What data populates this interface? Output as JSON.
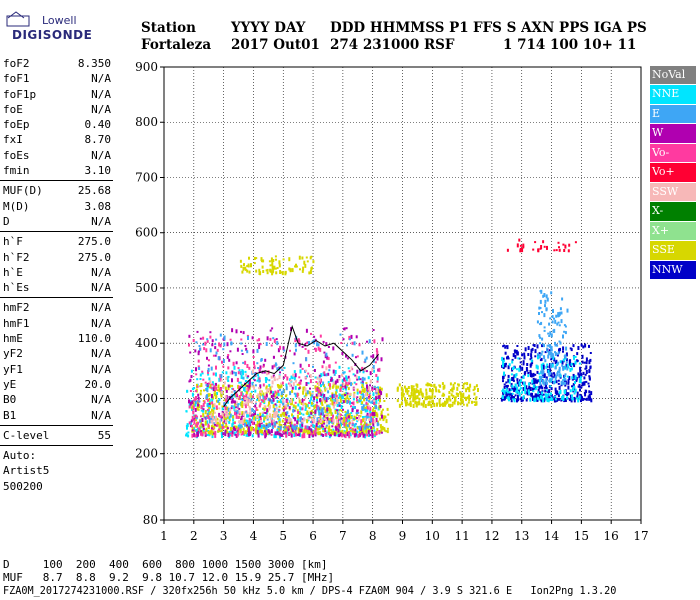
{
  "logo": {
    "line1": "Lowell",
    "line2": "DIGISONDE"
  },
  "header": {
    "labels": [
      "Station",
      "YYYY DAY",
      "DDD HHMMSS P1",
      "FFS S AXN PPS IGA PS"
    ],
    "values": [
      "Fortaleza",
      "2017 Out01",
      "274 231000 RSF",
      "1 714 100 10+ 11"
    ]
  },
  "params": {
    "g1": [
      [
        "foF2",
        "8.350"
      ],
      [
        "foF1",
        "N/A"
      ],
      [
        "foF1p",
        "N/A"
      ],
      [
        "foE",
        "N/A"
      ],
      [
        "foEp",
        "0.40"
      ],
      [
        "fxI",
        "8.70"
      ],
      [
        "foEs",
        "N/A"
      ],
      [
        "fmin",
        "3.10"
      ]
    ],
    "g2": [
      [
        "MUF(D)",
        "25.68"
      ],
      [
        "M(D)",
        "3.08"
      ],
      [
        "D",
        "N/A"
      ]
    ],
    "g3": [
      [
        "h`F",
        "275.0"
      ],
      [
        "h`F2",
        "275.0"
      ],
      [
        "h`E",
        "N/A"
      ],
      [
        "h`Es",
        "N/A"
      ]
    ],
    "g4": [
      [
        "hmF2",
        "N/A"
      ],
      [
        "hmF1",
        "N/A"
      ],
      [
        "hmE",
        "110.0"
      ],
      [
        "yF2",
        "N/A"
      ],
      [
        "yF1",
        "N/A"
      ],
      [
        "yE",
        "20.0"
      ],
      [
        "B0",
        "N/A"
      ],
      [
        "B1",
        "N/A"
      ]
    ],
    "g5": [
      [
        "C-level",
        "55"
      ]
    ],
    "auto": [
      "Auto:",
      "Artist5",
      "500200"
    ]
  },
  "legend": [
    {
      "label": "NoVal",
      "color": "#808080"
    },
    {
      "label": "NNE",
      "color": "#00e5ff"
    },
    {
      "label": "E",
      "color": "#3ea6f5"
    },
    {
      "label": "W",
      "color": "#b000b0"
    },
    {
      "label": "Vo-",
      "color": "#ff3aa0"
    },
    {
      "label": "Vo+",
      "color": "#ff0033"
    },
    {
      "label": "SSW",
      "color": "#f7b8b8"
    },
    {
      "label": "X-",
      "color": "#008000"
    },
    {
      "label": "X+",
      "color": "#8fe28f"
    },
    {
      "label": "SSE",
      "color": "#d7d700"
    },
    {
      "label": "NNW",
      "color": "#0000c8"
    }
  ],
  "footer": {
    "line1": "D     100  200  400  600  800 1000 1500 3000 [km]",
    "line2": "MUF   8.7  8.8  9.2  9.8 10.7 12.0 15.9 25.7 [MHz]",
    "line3": "FZA0M_2017274231000.RSF / 320fx256h 50 kHz 5.0 km / DPS-4 FZA0M 904 / 3.9 S 321.6 E   Ion2Png 1.3.20"
  },
  "chart_data": {
    "type": "scatter",
    "title": "",
    "xlabel": "",
    "ylabel": "",
    "xlim": [
      1,
      17
    ],
    "ylim": [
      80,
      900
    ],
    "xticks": [
      1,
      2,
      3,
      4,
      5,
      6,
      7,
      8,
      9,
      10,
      11,
      12,
      13,
      14,
      15,
      16,
      17
    ],
    "yticks": [
      80,
      200,
      300,
      400,
      500,
      600,
      700,
      800,
      900
    ],
    "grid": true,
    "trace": {
      "name": "",
      "color": "#000000",
      "x": [
        3.0,
        3.2,
        3.5,
        3.8,
        4.1,
        4.4,
        4.7,
        5.0,
        5.3,
        5.5,
        5.8,
        6.1,
        6.4,
        6.7,
        7.0,
        7.3,
        7.6,
        7.9,
        8.2
      ],
      "y": [
        285,
        300,
        315,
        330,
        345,
        350,
        345,
        360,
        430,
        400,
        395,
        405,
        395,
        400,
        385,
        370,
        350,
        360,
        380
      ]
    },
    "clusters": [
      {
        "name": "NNE",
        "x": [
          1.7,
          8.2
        ],
        "y": [
          235,
          360
        ],
        "n": 520
      },
      {
        "name": "SSE",
        "x": [
          1.9,
          8.5
        ],
        "y": [
          240,
          330
        ],
        "n": 620
      },
      {
        "name": "W",
        "x": [
          1.8,
          8.3
        ],
        "y": [
          235,
          430
        ],
        "n": 420
      },
      {
        "name": "Vo-",
        "x": [
          1.8,
          8.2
        ],
        "y": [
          235,
          420
        ],
        "n": 320
      },
      {
        "name": "E",
        "x": [
          2.0,
          8.2
        ],
        "y": [
          250,
          420
        ],
        "n": 240
      },
      {
        "name": "SSW",
        "x": [
          2.5,
          8.2
        ],
        "y": [
          260,
          360
        ],
        "n": 180
      },
      {
        "name": "SSE",
        "x": [
          3.5,
          6.0
        ],
        "y": [
          530,
          560
        ],
        "n": 80
      },
      {
        "name": "SSE",
        "x": [
          8.8,
          11.5
        ],
        "y": [
          290,
          330
        ],
        "n": 220
      },
      {
        "name": "NNW",
        "x": [
          12.3,
          15.3
        ],
        "y": [
          300,
          400
        ],
        "n": 420
      },
      {
        "name": "NNE",
        "x": [
          12.3,
          15.0
        ],
        "y": [
          300,
          380
        ],
        "n": 160
      },
      {
        "name": "E",
        "x": [
          13.5,
          14.5
        ],
        "y": [
          330,
          500
        ],
        "n": 140
      },
      {
        "name": "Vo+",
        "x": [
          12.5,
          14.8
        ],
        "y": [
          570,
          590
        ],
        "n": 30
      }
    ]
  }
}
